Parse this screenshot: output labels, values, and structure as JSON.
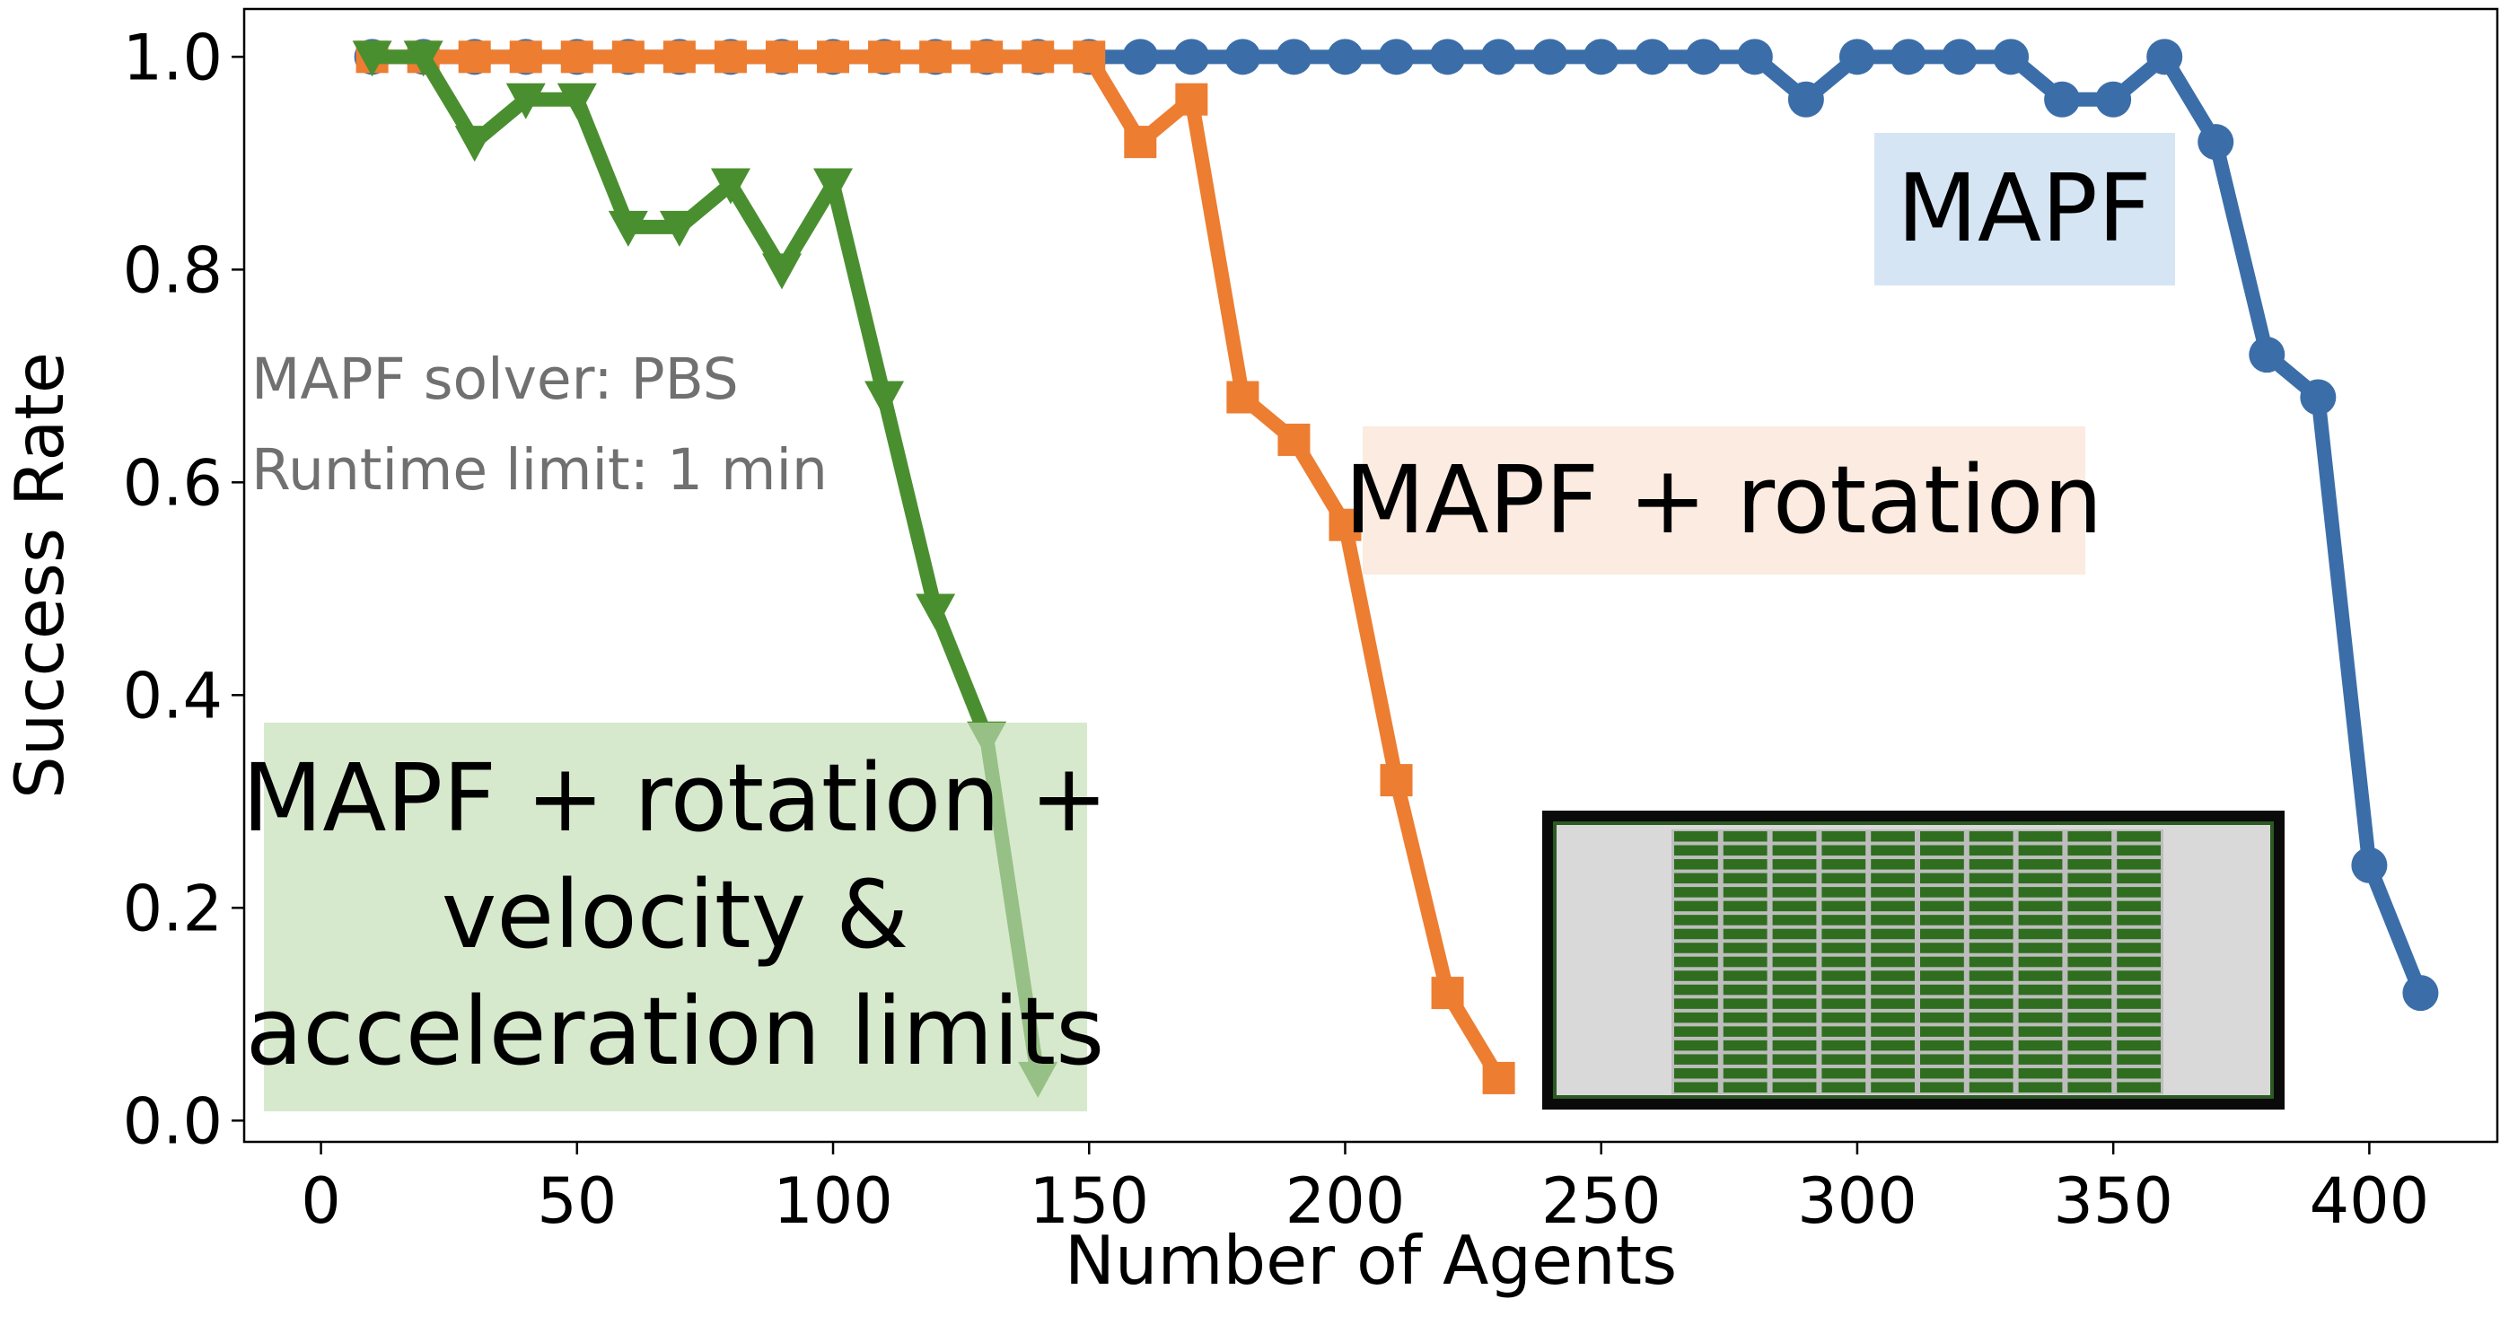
{
  "chart_data": {
    "type": "line",
    "xlabel": "Number of Agents",
    "ylabel": "Success Rate",
    "xlim": [
      -15,
      425
    ],
    "ylim": [
      -0.02,
      1.045
    ],
    "x_ticks": [
      "0",
      "50",
      "100",
      "150",
      "200",
      "250",
      "300",
      "350",
      "400"
    ],
    "y_ticks": [
      "0.0",
      "0.2",
      "0.4",
      "0.6",
      "0.8",
      "1.0"
    ],
    "grid": false,
    "annotations": [
      "MAPF solver: PBS",
      "Runtime limit: 1 min"
    ],
    "series": [
      {
        "label": "MAPF",
        "color": "#3b6ea8",
        "marker": "circle",
        "label_box_color": "#d6e5f3",
        "x": [
          10,
          20,
          30,
          40,
          50,
          60,
          70,
          80,
          90,
          100,
          110,
          120,
          130,
          140,
          150,
          160,
          170,
          180,
          190,
          200,
          210,
          220,
          230,
          240,
          250,
          260,
          270,
          280,
          290,
          300,
          310,
          320,
          330,
          340,
          350,
          360,
          370,
          380,
          390,
          400,
          410
        ],
        "y": [
          1.0,
          1.0,
          1.0,
          1.0,
          1.0,
          1.0,
          1.0,
          1.0,
          1.0,
          1.0,
          1.0,
          1.0,
          1.0,
          1.0,
          1.0,
          1.0,
          1.0,
          1.0,
          1.0,
          1.0,
          1.0,
          1.0,
          1.0,
          1.0,
          1.0,
          1.0,
          1.0,
          1.0,
          0.96,
          1.0,
          1.0,
          1.0,
          1.0,
          0.96,
          0.96,
          1.0,
          0.92,
          0.72,
          0.68,
          0.24,
          0.12
        ]
      },
      {
        "label": "MAPF + rotation",
        "color": "#ed7d31",
        "marker": "square",
        "label_box_color": "#fbebe0",
        "x": [
          10,
          20,
          30,
          40,
          50,
          60,
          70,
          80,
          90,
          100,
          110,
          120,
          130,
          140,
          150,
          160,
          170,
          180,
          190,
          200,
          210,
          220,
          230
        ],
        "y": [
          1.0,
          1.0,
          1.0,
          1.0,
          1.0,
          1.0,
          1.0,
          1.0,
          1.0,
          1.0,
          1.0,
          1.0,
          1.0,
          1.0,
          1.0,
          0.92,
          0.96,
          0.68,
          0.64,
          0.56,
          0.32,
          0.12,
          0.04
        ]
      },
      {
        "label": "MAPF + rotation + velocity & acceleration limits",
        "label_lines": [
          "MAPF + rotation +",
          "velocity &",
          "acceleration limits"
        ],
        "color": "#4a8f2f",
        "marker": "triangle-down",
        "label_box_color": "#d7e9cd",
        "x": [
          10,
          20,
          30,
          40,
          50,
          60,
          70,
          80,
          90,
          100,
          110,
          120,
          130,
          140
        ],
        "y": [
          1.0,
          1.0,
          0.92,
          0.96,
          0.96,
          0.84,
          0.84,
          0.88,
          0.8,
          0.88,
          0.68,
          0.48,
          0.36,
          0.04
        ]
      }
    ],
    "inset": {
      "icon": "warehouse-map-icon",
      "border_color": "#0a0a0a",
      "floor_color": "#d9d9d9",
      "shelf_color": "#2e6e1e"
    }
  }
}
